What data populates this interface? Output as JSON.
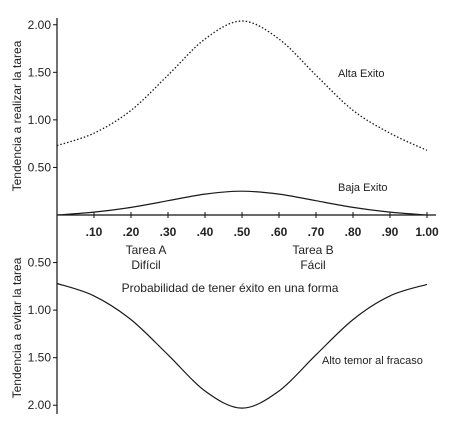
{
  "chart_data": {
    "type": "line",
    "xlabel": "Probabilidad de tener éxito en una forma",
    "ylabel_top": "Tendencia a realizar la tarea",
    "ylabel_bottom": "Tendencia a evitar la tarea",
    "x_ticks": [
      ".10",
      ".20",
      ".30",
      ".40",
      ".50",
      ".60",
      ".70",
      ".80",
      ".90",
      "1.00"
    ],
    "y_ticks_top": [
      "0.50",
      "1.00",
      "1.50",
      "2.00"
    ],
    "y_ticks_bottom": [
      "0.50",
      "1.00",
      "1.50",
      "2.00"
    ],
    "xlim": [
      0,
      1
    ],
    "ylim_top": [
      0,
      2.05
    ],
    "ylim_bottom": [
      0,
      2.05
    ],
    "annotations": {
      "task_a_line1": "Tarea A",
      "task_a_line2": "Difícil",
      "task_b_line1": "Tarea B",
      "task_b_line2": "Fácil"
    },
    "series": [
      {
        "name": "Alta Exito",
        "panel": "top",
        "style": "dotted",
        "x": [
          0,
          0.1,
          0.2,
          0.3,
          0.4,
          0.5,
          0.6,
          0.7,
          0.8,
          0.9,
          1.0
        ],
        "values": [
          0.73,
          0.86,
          1.1,
          1.47,
          1.85,
          2.04,
          1.85,
          1.47,
          1.1,
          0.86,
          0.68
        ]
      },
      {
        "name": "Baja Exito",
        "panel": "top",
        "style": "solid",
        "x": [
          0,
          0.1,
          0.2,
          0.3,
          0.4,
          0.5,
          0.6,
          0.7,
          0.8,
          0.9,
          1.0
        ],
        "values": [
          0.0,
          0.03,
          0.08,
          0.15,
          0.22,
          0.25,
          0.22,
          0.15,
          0.08,
          0.03,
          0.0
        ]
      },
      {
        "name": "Alto temor al fracaso",
        "panel": "bottom",
        "style": "solid",
        "x": [
          0,
          0.1,
          0.2,
          0.3,
          0.4,
          0.5,
          0.6,
          0.7,
          0.8,
          0.9,
          1.0
        ],
        "values": [
          0.72,
          0.85,
          1.1,
          1.47,
          1.85,
          2.03,
          1.85,
          1.47,
          1.1,
          0.85,
          0.73
        ]
      }
    ]
  }
}
